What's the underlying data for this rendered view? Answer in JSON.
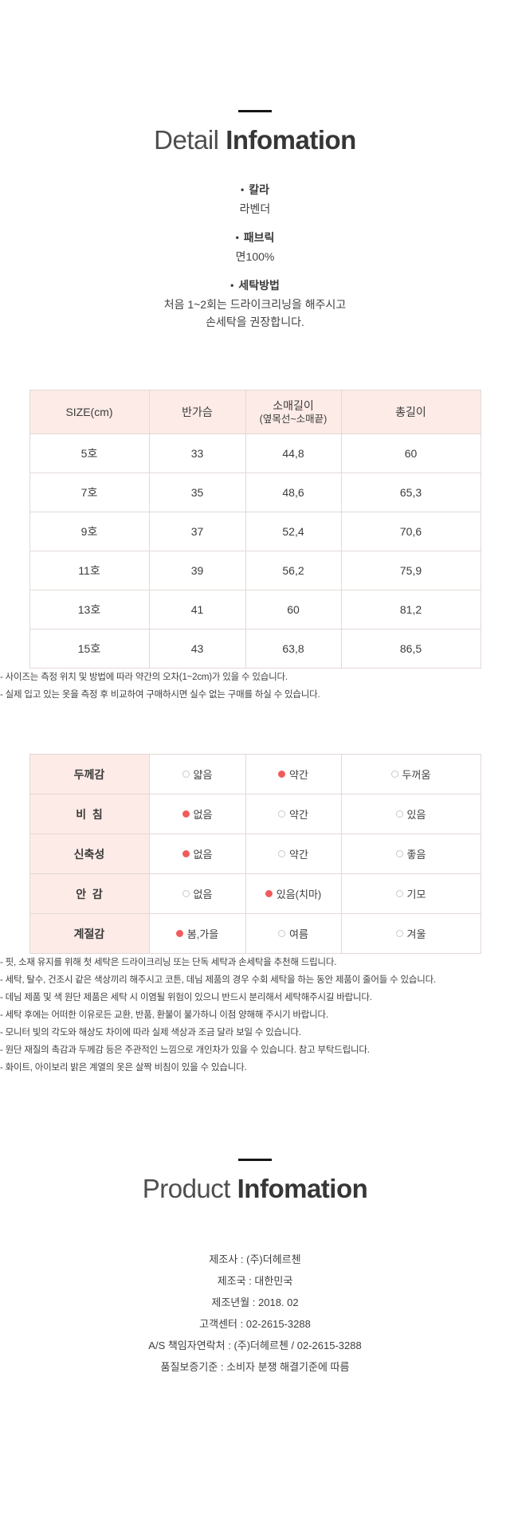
{
  "colors": {
    "table_header_pink": "#fcebe7",
    "selected_dot_red": "#f15b5b",
    "title_dark": "#363636",
    "line_black": "#161616"
  },
  "detail_section": {
    "title_light": "Detail",
    "title_bold": "Infomation",
    "bullet_marker": "•",
    "bullets": [
      {
        "label": "칼라",
        "lines": [
          "라벤더"
        ]
      },
      {
        "label": "패브릭",
        "lines": [
          "면100%"
        ]
      },
      {
        "label": "세탁방법",
        "lines": [
          "처음 1~2회는 드라이크리닝을 해주시고",
          "손세탁을 권장합니다."
        ]
      }
    ]
  },
  "size_table": {
    "headers": [
      "SIZE(cm)",
      "반가슴",
      "소매길이",
      "총길이"
    ],
    "header_sleeve_sub": "(옆목선~소매끝)",
    "rows": [
      [
        "5호",
        "33",
        "44,8",
        "60"
      ],
      [
        "7호",
        "35",
        "48,6",
        "65,3"
      ],
      [
        "9호",
        "37",
        "52,4",
        "70,6"
      ],
      [
        "11호",
        "39",
        "56,2",
        "75,9"
      ],
      [
        "13호",
        "41",
        "60",
        "81,2"
      ],
      [
        "15호",
        "43",
        "63,8",
        "86,5"
      ]
    ]
  },
  "size_notes": [
    "- 사이즈는 측정 위치 및 방법에 따라 약간의 오차(1~2cm)가 있을 수 있습니다.",
    "- 실제 입고 있는 옷을 측정 후 비교하여 구매하시면 실수 없는 구매를 하실 수 있습니다."
  ],
  "attr_table": {
    "rows": [
      {
        "label": "두께감",
        "options": [
          {
            "text": "얇음",
            "selected": false
          },
          {
            "text": "약간",
            "selected": true
          },
          {
            "text": "두꺼움",
            "selected": false
          }
        ]
      },
      {
        "label": "비  침",
        "options": [
          {
            "text": "없음",
            "selected": true
          },
          {
            "text": "약간",
            "selected": false
          },
          {
            "text": "있음",
            "selected": false
          }
        ]
      },
      {
        "label": "신축성",
        "options": [
          {
            "text": "없음",
            "selected": true
          },
          {
            "text": "약간",
            "selected": false
          },
          {
            "text": "좋음",
            "selected": false
          }
        ]
      },
      {
        "label": "안  감",
        "options": [
          {
            "text": "없음",
            "selected": false
          },
          {
            "text": "있음(치마)",
            "selected": true
          },
          {
            "text": "기모",
            "selected": false
          }
        ]
      },
      {
        "label": "계절감",
        "options": [
          {
            "text": "봄,가을",
            "selected": true
          },
          {
            "text": "여름",
            "selected": false
          },
          {
            "text": "겨울",
            "selected": false
          }
        ]
      }
    ]
  },
  "care_notes": [
    "- 핏, 소재 유지를 위해 첫 세탁은 드라이크리닝 또는 단독 세탁과 손세탁을 추천해 드립니다.",
    "- 세탁, 탈수, 건조시 같은 색상끼리 해주시고 코튼, 데님 제품의 경우 수회 세탁을 하는 동안 제품이 줄어들 수 있습니다.",
    "- 데님 제품 및 색 원단 제품은 세탁 시 이염될 위험이 있으니 반드시 분리해서 세탁해주시길 바랍니다.",
    "- 세탁 후에는 어떠한 이유로든 교환, 반품, 환불이 불가하니 이점 양해해 주시기 바랍니다.",
    "- 모니터 빛의 각도와 해상도 차이에 따라 실제 색상과 조금 달라 보일 수 있습니다.",
    "- 원단 재질의 촉감과 두께감 등은 주관적인 느낌으로 개인차가 있을 수 있습니다. 참고 부탁드립니다.",
    "- 화이트, 아이보리 밝은 계열의 옷은 살짝 비침이 있을 수 있습니다."
  ],
  "product_section": {
    "title_light": "Product",
    "title_bold": "Infomation",
    "info": [
      "제조사 : (주)더헤르첸",
      "제조국 : 대한민국",
      "제조년월 : 2018. 02",
      "고객센터 : 02-2615-3288",
      "A/S 책임자연락처 : (주)더헤르첸 / 02-2615-3288",
      "품질보증기준 : 소비자 분쟁 해결기준에 따름"
    ]
  }
}
